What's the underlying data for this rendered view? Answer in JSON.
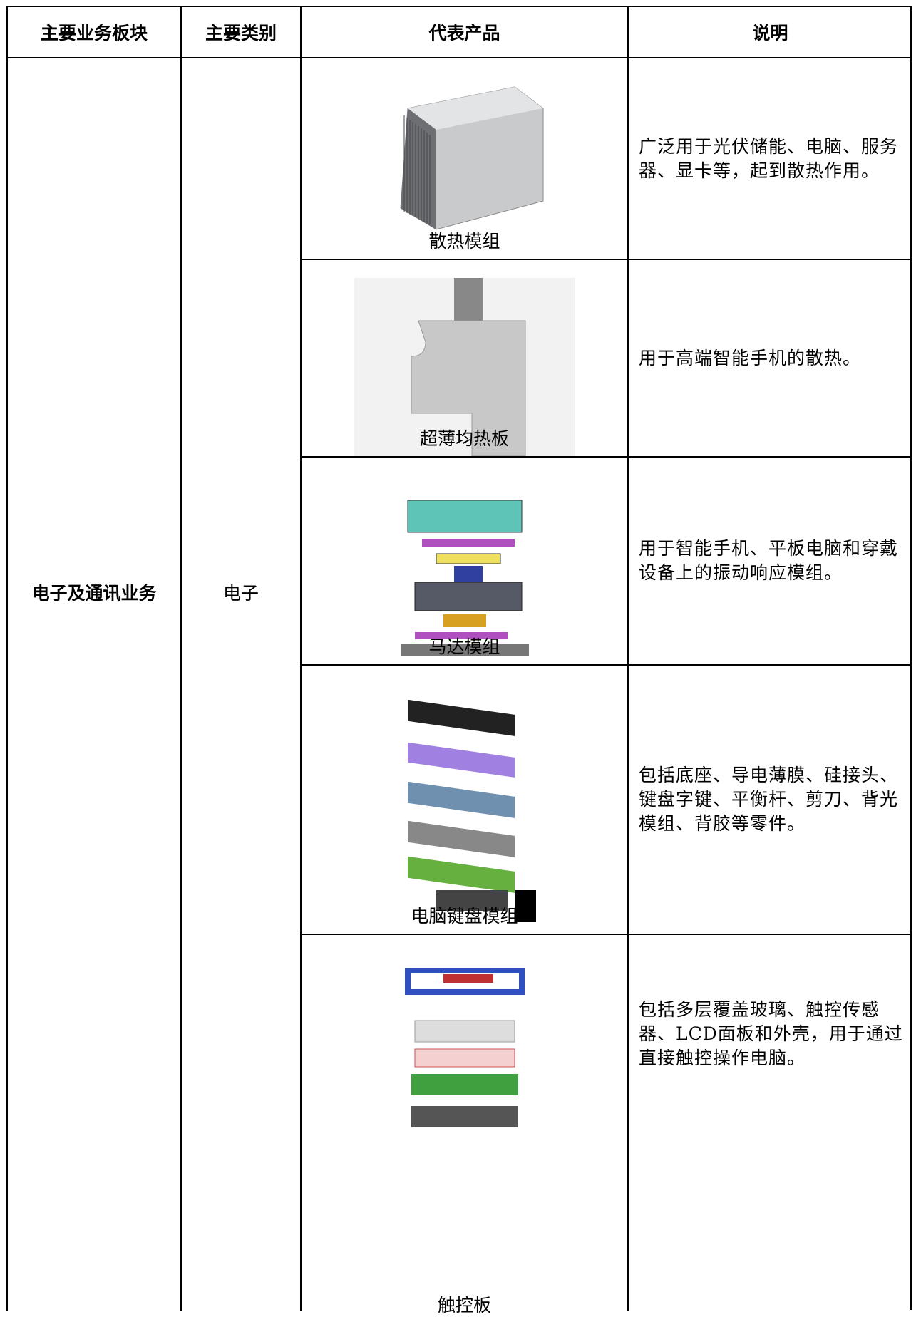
{
  "table": {
    "headers": [
      "主要业务板块",
      "主要类别",
      "代表产品",
      "说明"
    ],
    "segment": "电子及通讯业务",
    "category": "电子",
    "products": [
      {
        "name": "散热模组",
        "description": "广泛用于光伏储能、电脑、服务器、显卡等，起到散热作用。"
      },
      {
        "name": "超薄均热板",
        "description": "用于高端智能手机的散热。"
      },
      {
        "name": "马达模组",
        "description": "用于智能手机、平板电脑和穿戴设备上的振动响应模组。"
      },
      {
        "name": "电脑键盘模组",
        "description": "包括底座、导电薄膜、硅接头、键盘字键、平衡杆、剪刀、背光模组、背胶等零件。"
      },
      {
        "name": "触控板",
        "description": "包括多层覆盖玻璃、触控传感器、LCD面板和外壳，用于通过直接触控操作电脑。"
      }
    ]
  }
}
